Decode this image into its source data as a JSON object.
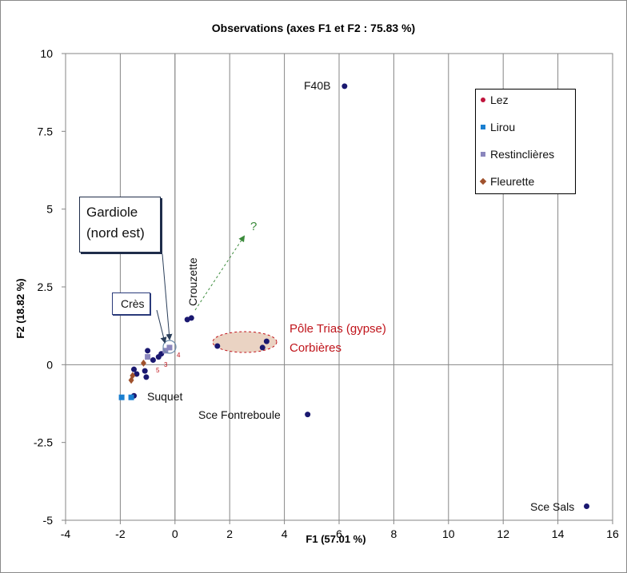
{
  "chart_data": {
    "type": "scatter",
    "title": "Observations (axes F1 et F2 : 75.83 %)",
    "xlabel": "F1 (57.01 %)",
    "ylabel": "F2 (18.82 %)",
    "xlim": [
      -4,
      16
    ],
    "ylim": [
      -5,
      10
    ],
    "xticks": [
      "-4",
      "-2",
      "0",
      "2",
      "4",
      "6",
      "8",
      "10",
      "12",
      "14",
      "16"
    ],
    "yticks": [
      "-5",
      "-2.5",
      "0",
      "2.5",
      "5",
      "7.5",
      "10"
    ],
    "grid": "vertical",
    "legend_position": "top-right",
    "series": [
      {
        "name": "Lez",
        "color": "#1a1870",
        "legend_color": "#c0143c",
        "marker": "circle",
        "points": [
          [
            6.2,
            8.95
          ],
          [
            4.85,
            -1.6
          ],
          [
            15.05,
            -4.55
          ],
          [
            1.55,
            0.6
          ],
          [
            3.2,
            0.55
          ],
          [
            3.35,
            0.75
          ],
          [
            0.45,
            1.45
          ],
          [
            0.6,
            1.5
          ],
          [
            -1.0,
            0.45
          ],
          [
            -1.5,
            -0.15
          ],
          [
            -1.4,
            -0.3
          ],
          [
            -1.1,
            -0.2
          ],
          [
            -1.05,
            -0.4
          ],
          [
            -0.8,
            0.15
          ],
          [
            -0.6,
            0.25
          ],
          [
            -0.5,
            0.35
          ],
          [
            -1.5,
            -1.0
          ]
        ]
      },
      {
        "name": "Lirou",
        "color": "#1a7fd0",
        "marker": "square",
        "points": [
          [
            -1.95,
            -1.05
          ],
          [
            -1.6,
            -1.05
          ]
        ]
      },
      {
        "name": "Restinclières",
        "color": "#8a86bd",
        "marker": "square",
        "points": [
          [
            -0.2,
            0.55
          ],
          [
            -0.35,
            0.45
          ],
          [
            -1.0,
            0.25
          ]
        ]
      },
      {
        "name": "Fleurette",
        "color": "#a0522d",
        "marker": "diamond",
        "points": [
          [
            -1.6,
            -0.5
          ],
          [
            -1.55,
            -0.35
          ],
          [
            -1.15,
            0.05
          ]
        ]
      }
    ],
    "annotations": {
      "point_labels": [
        {
          "text": "F40B",
          "x": 6.2,
          "y": 8.95
        },
        {
          "text": "Sce Fontreboule",
          "x": 4.85,
          "y": -1.6
        },
        {
          "text": "Sce Sals",
          "x": 15.05,
          "y": -4.55
        },
        {
          "text": "Suquet",
          "x": -1.5,
          "y": -1.0
        }
      ],
      "rotated_label": "Crouzette",
      "pole_line1": "Pôle Trias (gypse)",
      "pole_line2": "Corbières",
      "question": "?",
      "callout_cres": "Crès",
      "callout_gardiole_line1": "Gardiole",
      "callout_gardiole_line2": "(nord est)"
    }
  }
}
